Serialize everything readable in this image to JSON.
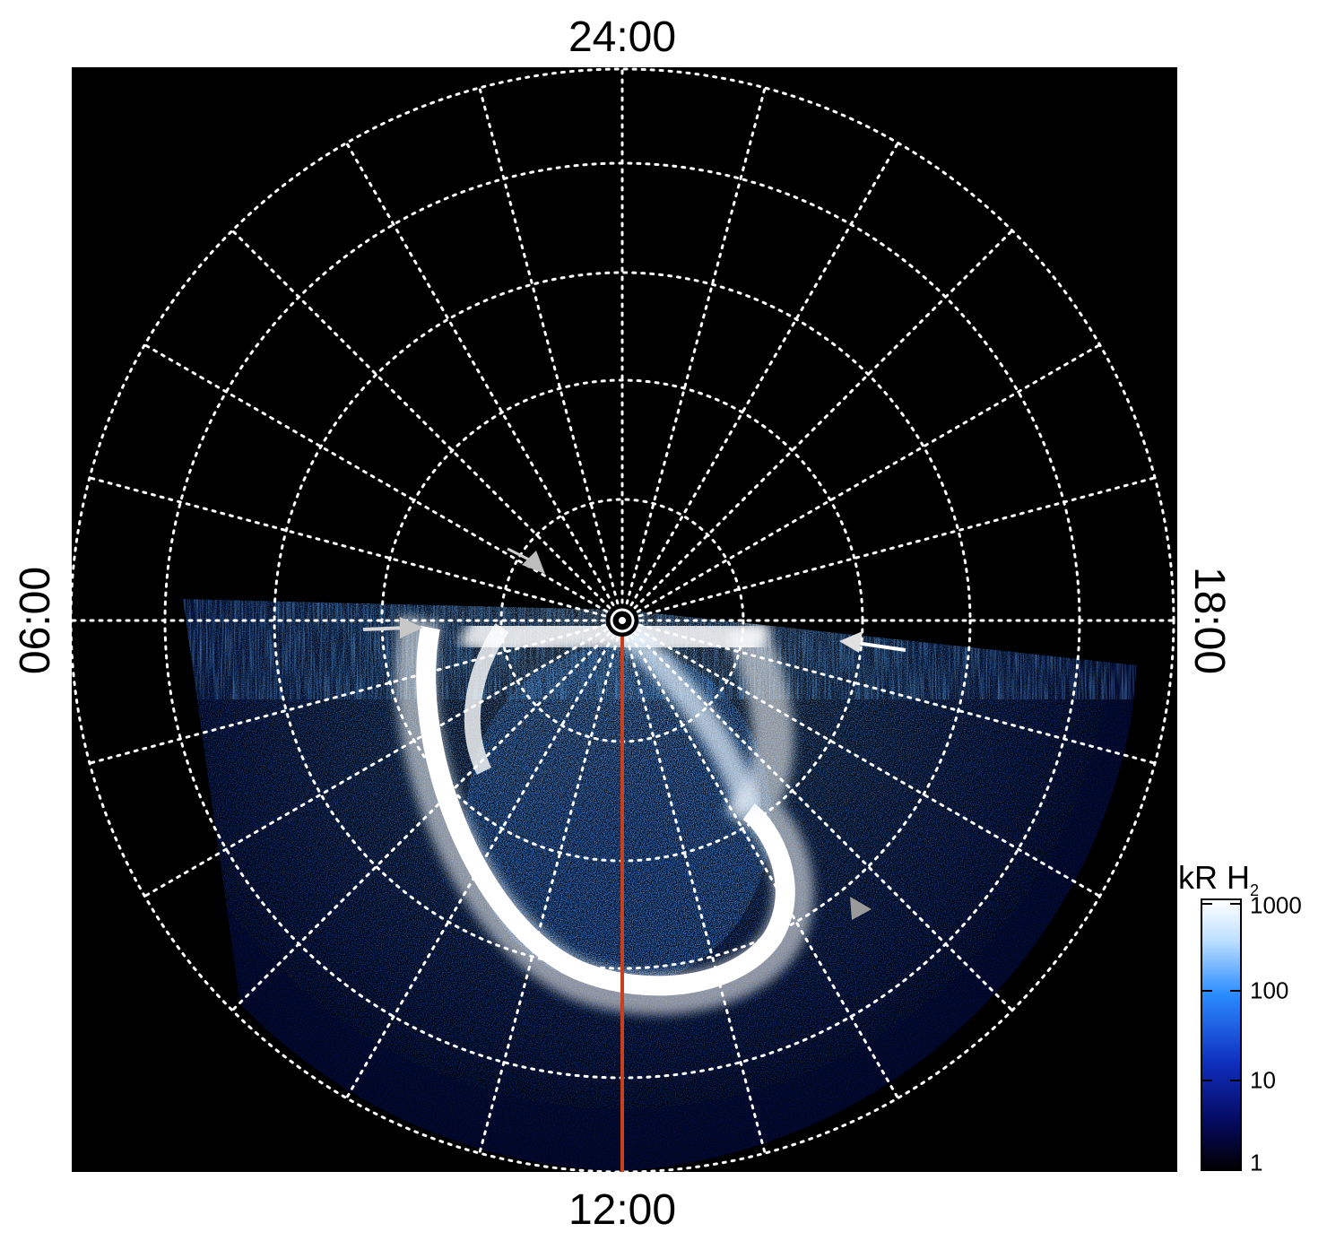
{
  "image": {
    "description_labels": {
      "top": "24:00",
      "bottom": "12:00",
      "left": "06:00",
      "right": "18:00"
    },
    "colors": {
      "background": "#000000",
      "grid": "#ffffff",
      "meridian_line": "#c8401e",
      "aurora_core": "#ffffff",
      "emission_high": "#3a8fff",
      "emission_low": "#0a1a8c",
      "arrow_gray": "#b8b8b8"
    }
  },
  "colorbar": {
    "title": "kR H",
    "title_sub": "2",
    "ticks": [
      "1000",
      "100",
      "10",
      "1"
    ],
    "scale": "log"
  }
}
